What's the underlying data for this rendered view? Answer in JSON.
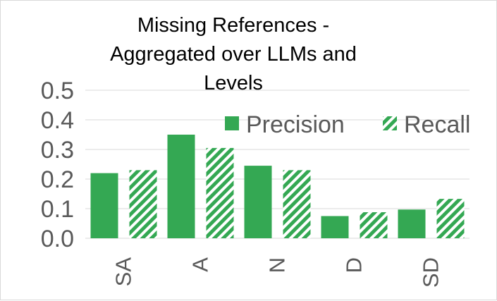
{
  "chart_data": {
    "type": "bar",
    "title_lines": [
      "Missing References -",
      "Aggregated over LLMs and",
      "Levels"
    ],
    "categories": [
      "SA",
      "A",
      "N",
      "D",
      "SD"
    ],
    "series": [
      {
        "name": "Precision",
        "values": [
          0.22,
          0.35,
          0.245,
          0.075,
          0.097
        ],
        "color": "#34a853",
        "pattern": "solid"
      },
      {
        "name": "Recall",
        "values": [
          0.23,
          0.305,
          0.23,
          0.088,
          0.133
        ],
        "color": "#34a853",
        "pattern": "diagonal-stripes"
      }
    ],
    "y_ticks": [
      "0.0",
      "0.1",
      "0.2",
      "0.3",
      "0.4",
      "0.5"
    ],
    "ylim": [
      0,
      0.5
    ],
    "grid": true,
    "legend_position": "top-right",
    "xlabel": "",
    "ylabel": ""
  }
}
